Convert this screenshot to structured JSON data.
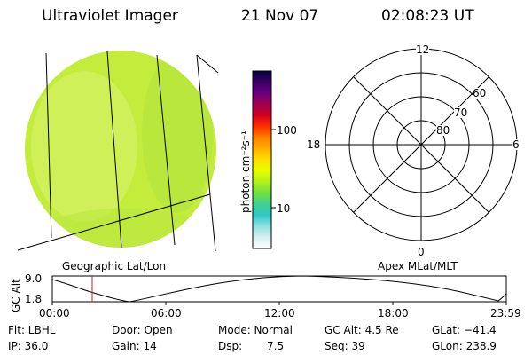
{
  "header": {
    "instrument": "Ultraviolet Imager",
    "date": "21 Nov 07",
    "time": "02:08:23 UT"
  },
  "image_panel": {
    "caption": "Geographic Lat/Lon"
  },
  "colorbar": {
    "unit_label": "photon cm⁻²s⁻¹",
    "tick_labels": [
      "100",
      "10"
    ],
    "colors": [
      "#000040",
      "#3a0060",
      "#6a0080",
      "#a00050",
      "#d00020",
      "#ff3000",
      "#ff8000",
      "#ffb000",
      "#ffe000",
      "#e8ff00",
      "#b0f020",
      "#70e040",
      "#40d090",
      "#30c8c8",
      "#90e0e0",
      "#d8f0f0",
      "#ffffff"
    ]
  },
  "polar_panel": {
    "caption": "Apex MLat/MLT",
    "mlt_labels": {
      "top": "12",
      "left": "18",
      "right": "6",
      "bottom": "0"
    },
    "lat_labels": [
      "60",
      "70",
      "80"
    ]
  },
  "altitude_plot": {
    "ylabel": "GC Alt",
    "y_ticks": [
      "9.0",
      "1.8"
    ],
    "x_ticks": [
      "00:00",
      "06:00",
      "12:00",
      "18:00",
      "23:59"
    ],
    "marker_color": "#d02020"
  },
  "info": {
    "flt": "Flt: LBHL",
    "ip": "IP: 36.0",
    "door": "Door: Open",
    "gain": "Gain: 14",
    "mode": "Mode: Normal",
    "dsp_label": "Dsp:",
    "dsp_value": "7.5",
    "gc_alt": "GC Alt: 4.5 Re",
    "seq": "Seq: 39",
    "glat": "GLat: −41.4",
    "glon": "GLon: 238.9"
  },
  "colors": {
    "earth_fill": "#c4ec3c",
    "aurora_fill": "#a8e840"
  }
}
